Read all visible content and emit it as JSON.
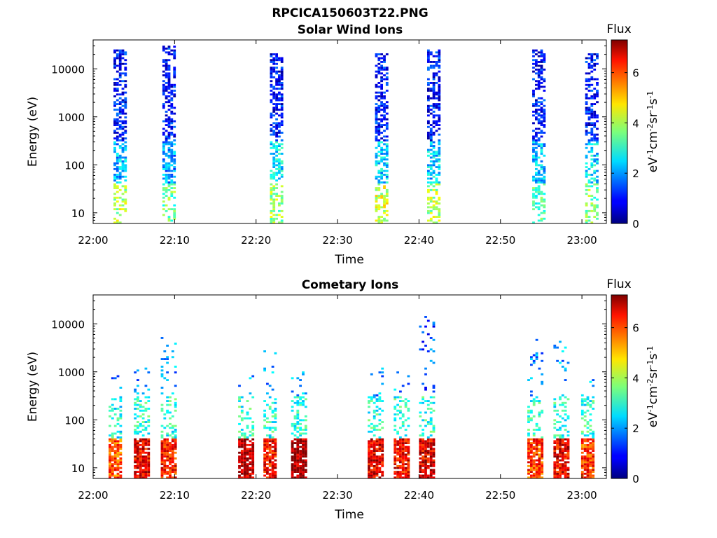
{
  "figure": {
    "title": "RPCICA150603T22.PNG"
  },
  "colorbar": {
    "label": "Flux",
    "unit_label": "eV-1cm-2sr-1s-1",
    "ticks": [
      0,
      2,
      4,
      6
    ],
    "range": [
      0,
      7.3
    ],
    "colormap": "jet"
  },
  "chart_data": [
    {
      "type": "heatmap",
      "title": "Solar Wind Ions",
      "xlabel": "Time",
      "ylabel": "Energy (eV)",
      "x_ticks": [
        "22:00",
        "22:10",
        "22:20",
        "22:30",
        "22:40",
        "22:50",
        "23:00"
      ],
      "y_ticks": [
        "10",
        "100",
        "1000",
        "10000"
      ],
      "y_scale": "log",
      "ylim": [
        6,
        40000
      ],
      "xlim_minutes": [
        0,
        63
      ],
      "bursts": [
        {
          "center_minute": 3.3,
          "half_width": 0.8,
          "e_min": 6,
          "e_max": 25000,
          "low_flux": 4,
          "mid_flux": 2.2,
          "high_flux": 1.0
        },
        {
          "center_minute": 9.4,
          "half_width": 0.9,
          "e_min": 6,
          "e_max": 30000,
          "low_flux": 3.5,
          "mid_flux": 2.0,
          "high_flux": 1.0
        },
        {
          "center_minute": 22.5,
          "half_width": 0.8,
          "e_min": 6,
          "e_max": 20000,
          "low_flux": 3.8,
          "mid_flux": 2.6,
          "high_flux": 1.0
        },
        {
          "center_minute": 35.5,
          "half_width": 0.9,
          "e_min": 6,
          "e_max": 20000,
          "low_flux": 4.2,
          "mid_flux": 2.4,
          "high_flux": 1.0
        },
        {
          "center_minute": 41.8,
          "half_width": 0.8,
          "e_min": 6,
          "e_max": 25000,
          "low_flux": 4.0,
          "mid_flux": 2.4,
          "high_flux": 1.0
        },
        {
          "center_minute": 54.8,
          "half_width": 0.9,
          "e_min": 6,
          "e_max": 25000,
          "low_flux": 3.3,
          "mid_flux": 2.3,
          "high_flux": 1.0
        },
        {
          "center_minute": 61.2,
          "half_width": 0.8,
          "e_min": 6,
          "e_max": 20000,
          "low_flux": 3.6,
          "mid_flux": 2.5,
          "high_flux": 1.0
        }
      ]
    },
    {
      "type": "heatmap",
      "title": "Cometary Ions",
      "xlabel": "Time",
      "ylabel": "Energy (eV)",
      "x_ticks": [
        "22:00",
        "22:10",
        "22:20",
        "22:30",
        "22:40",
        "22:50",
        "23:00"
      ],
      "y_ticks": [
        "10",
        "100",
        "1000",
        "10000"
      ],
      "y_scale": "log",
      "ylim": [
        6,
        40000
      ],
      "xlim_minutes": [
        0,
        63
      ],
      "bursts": [
        {
          "center_minute": 2.8,
          "half_width": 0.9,
          "e_min": 6,
          "e_max": 800,
          "low_flux": 5.8,
          "mid_flux": 2.8,
          "high_flux": 1.8
        },
        {
          "center_minute": 6.0,
          "half_width": 1.0,
          "e_min": 6,
          "e_max": 1500,
          "low_flux": 6.5,
          "mid_flux": 3.0,
          "high_flux": 2.0
        },
        {
          "center_minute": 9.3,
          "half_width": 1.0,
          "e_min": 6,
          "e_max": 5000,
          "low_flux": 6.2,
          "mid_flux": 3.0,
          "high_flux": 2.0
        },
        {
          "center_minute": 18.8,
          "half_width": 1.0,
          "e_min": 6,
          "e_max": 1000,
          "low_flux": 6.8,
          "mid_flux": 3.0,
          "high_flux": 2.0
        },
        {
          "center_minute": 21.8,
          "half_width": 0.9,
          "e_min": 6,
          "e_max": 3000,
          "low_flux": 6.4,
          "mid_flux": 3.0,
          "high_flux": 2.0
        },
        {
          "center_minute": 25.3,
          "half_width": 1.0,
          "e_min": 6,
          "e_max": 1000,
          "low_flux": 7.0,
          "mid_flux": 3.0,
          "high_flux": 2.0
        },
        {
          "center_minute": 34.7,
          "half_width": 1.0,
          "e_min": 6,
          "e_max": 1200,
          "low_flux": 6.6,
          "mid_flux": 3.0,
          "high_flux": 2.0
        },
        {
          "center_minute": 37.9,
          "half_width": 1.0,
          "e_min": 6,
          "e_max": 1000,
          "low_flux": 6.4,
          "mid_flux": 3.0,
          "high_flux": 2.0
        },
        {
          "center_minute": 41.0,
          "half_width": 1.0,
          "e_min": 6,
          "e_max": 15000,
          "low_flux": 6.6,
          "mid_flux": 3.0,
          "high_flux": 1.5
        },
        {
          "center_minute": 54.3,
          "half_width": 1.0,
          "e_min": 6,
          "e_max": 5000,
          "low_flux": 6.0,
          "mid_flux": 3.0,
          "high_flux": 2.0
        },
        {
          "center_minute": 57.5,
          "half_width": 1.0,
          "e_min": 6,
          "e_max": 4500,
          "low_flux": 6.5,
          "mid_flux": 3.0,
          "high_flux": 2.0
        },
        {
          "center_minute": 60.8,
          "half_width": 0.9,
          "e_min": 6,
          "e_max": 800,
          "low_flux": 6.0,
          "mid_flux": 3.0,
          "high_flux": 2.0
        }
      ]
    }
  ]
}
